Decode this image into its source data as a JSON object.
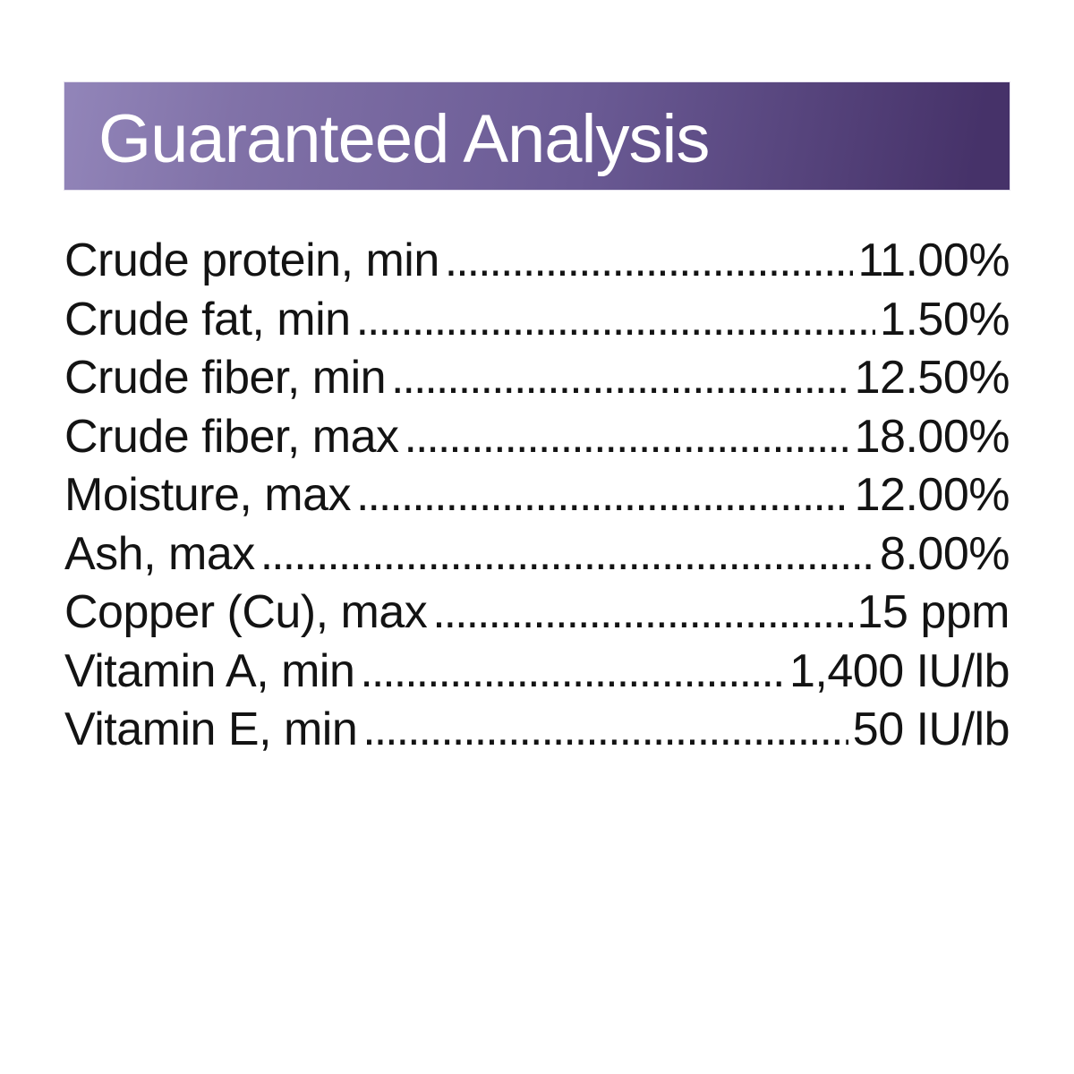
{
  "header": {
    "title": "Guaranteed Analysis",
    "gradient_left_color": "#9285b9",
    "gradient_right_color": "#463269",
    "title_color": "#ffffff"
  },
  "analysis": {
    "text_color": "#131313",
    "rows": [
      {
        "label": "Crude protein, min",
        "value": "11.00%"
      },
      {
        "label": "Crude fat, min",
        "value": "1.50%"
      },
      {
        "label": "Crude fiber, min",
        "value": "12.50%"
      },
      {
        "label": "Crude fiber, max",
        "value": "18.00%"
      },
      {
        "label": "Moisture, max",
        "value": "12.00%"
      },
      {
        "label": "Ash, max",
        "value": "8.00%"
      },
      {
        "label": "Copper (Cu), max",
        "value": "15 ppm"
      },
      {
        "label": "Vitamin A, min",
        "value": "1,400 IU/lb"
      },
      {
        "label": "Vitamin E, min",
        "value": "50 IU/lb"
      }
    ]
  }
}
